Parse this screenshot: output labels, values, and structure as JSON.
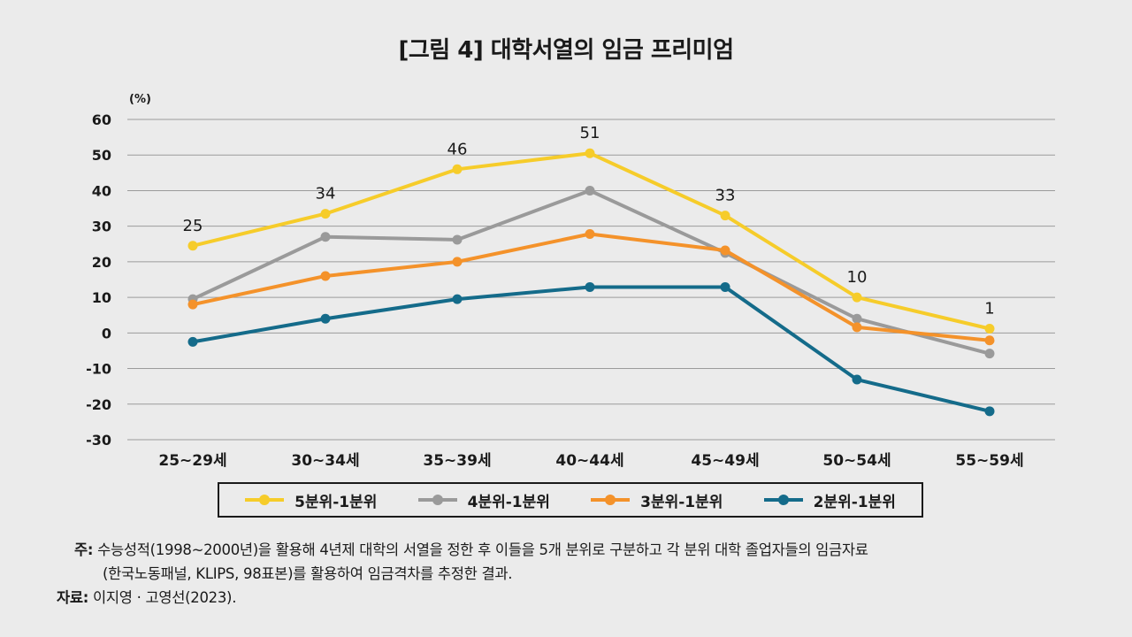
{
  "title": "[그림 4] 대학서열의 임금 프리미엄",
  "chart_data": {
    "type": "line",
    "unit_label": "(%)",
    "categories": [
      "25~29세",
      "30~34세",
      "35~39세",
      "40~44세",
      "45~49세",
      "50~54세",
      "55~59세"
    ],
    "yticks": [
      "60",
      "50",
      "40",
      "30",
      "20",
      "10",
      "0",
      "-10",
      "-20",
      "-30"
    ],
    "ylim": [
      -30,
      60
    ],
    "grid": true,
    "legend_position": "bottom",
    "series": [
      {
        "name": "5분위-1분위",
        "color": "#f6cc2a",
        "values": [
          24.5,
          33.5,
          46,
          50.5,
          33,
          10,
          1.2
        ],
        "data_labels": [
          "25",
          "34",
          "46",
          "51",
          "33",
          "10",
          "1"
        ]
      },
      {
        "name": "4분위-1분위",
        "color": "#9a9a9a",
        "values": [
          9.5,
          27,
          26.2,
          40,
          22.5,
          4,
          -5.8
        ]
      },
      {
        "name": "3분위-1분위",
        "color": "#f4922a",
        "values": [
          8,
          16,
          20,
          27.8,
          23.2,
          1.6,
          -2.1
        ]
      },
      {
        "name": "2분위-1분위",
        "color": "#146b8a",
        "values": [
          -2.5,
          4,
          9.5,
          12.9,
          12.9,
          -13.1,
          -22
        ]
      }
    ]
  },
  "notes": {
    "note_label": "주:",
    "note_line1": "수능성적(1998~2000년)을 활용해 4년제 대학의 서열을 정한 후 이들을 5개 분위로 구분하고 각 분위 대학 졸업자들의 임금자료",
    "note_line2": "(한국노동패널, KLIPS, 98표본)를 활용하여 임금격차를 추정한 결과.",
    "source_label": "자료:",
    "source_text": "이지영 · 고영선(2023)."
  }
}
